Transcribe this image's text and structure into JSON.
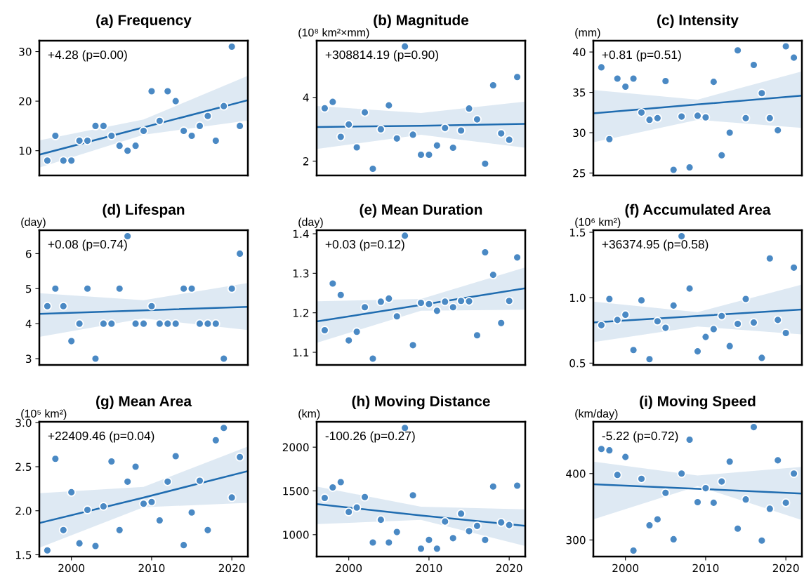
{
  "chart_data": [
    {
      "type": "scatter",
      "title": "(a) Frequency",
      "annotations": [
        "+4.28 (p=0.00)"
      ],
      "xlim": [
        1996,
        2022
      ],
      "xticks": [
        2000,
        2010,
        2020
      ],
      "ylim": [
        5,
        32.2
      ],
      "yticks": [
        10,
        20,
        30
      ],
      "tick_labels": "y",
      "grid": false,
      "series": [
        {
          "marker": "circle",
          "color": "#4a89c4",
          "x": [
            1997,
            1998,
            1999,
            2000,
            2001,
            2002,
            2003,
            2004,
            2005,
            2006,
            2007,
            2008,
            2009,
            2010,
            2011,
            2012,
            2013,
            2014,
            2015,
            2016,
            2017,
            2018,
            2019,
            2020,
            2021
          ],
          "values": [
            8,
            13,
            8,
            8,
            12,
            12,
            15,
            15,
            13,
            11,
            10,
            11,
            14,
            22,
            16,
            22,
            20,
            14,
            13,
            15,
            17,
            12,
            19,
            31,
            15
          ]
        },
        {
          "type": "line",
          "color": "#1f6cb0",
          "x": [
            1996,
            2009,
            2022
          ],
          "values": [
            9.2,
            14.7,
            20.2
          ],
          "lower": [
            6.6,
            13.2,
            16.1
          ],
          "upper": [
            12.1,
            16.3,
            25.1
          ]
        }
      ]
    },
    {
      "type": "scatter",
      "title": "(b) Magnitude",
      "ylabel": "(10⁸ km²×mm)",
      "annotations": [
        "+308814.19 (p=0.90)"
      ],
      "xlim": [
        1996,
        2022
      ],
      "xticks": [
        2000,
        2010,
        2020
      ],
      "ylim": [
        1.55,
        5.78
      ],
      "yticks": [
        2,
        4
      ],
      "tick_labels": "y",
      "grid": false,
      "series": [
        {
          "marker": "circle",
          "color": "#4a89c4",
          "x": [
            1997,
            1998,
            1999,
            2000,
            2001,
            2002,
            2003,
            2004,
            2005,
            2006,
            2007,
            2008,
            2009,
            2010,
            2011,
            2012,
            2013,
            2014,
            2015,
            2016,
            2017,
            2018,
            2019,
            2020,
            2021
          ],
          "values": [
            3.66,
            3.86,
            2.76,
            3.15,
            2.43,
            3.53,
            1.76,
            3.0,
            3.75,
            2.71,
            5.6,
            2.83,
            2.2,
            2.2,
            2.49,
            3.04,
            2.42,
            2.96,
            3.65,
            3.31,
            1.92,
            4.38,
            2.87,
            2.67,
            4.64
          ]
        },
        {
          "type": "line",
          "color": "#1f6cb0",
          "x": [
            1996,
            2009,
            2022
          ],
          "values": [
            3.07,
            3.11,
            3.17
          ],
          "lower": [
            2.38,
            2.83,
            2.42
          ],
          "upper": [
            3.73,
            3.51,
            3.87
          ]
        }
      ]
    },
    {
      "type": "scatter",
      "title": "(c) Intensity",
      "ylabel": "(mm)",
      "annotations": [
        "+0.81 (p=0.51)"
      ],
      "xlim": [
        1996,
        2022
      ],
      "xticks": [
        2000,
        2010,
        2020
      ],
      "ylim": [
        24.7,
        41.4
      ],
      "yticks": [
        25,
        30,
        35,
        40
      ],
      "tick_labels": "y",
      "grid": false,
      "series": [
        {
          "marker": "circle",
          "color": "#4a89c4",
          "x": [
            1997,
            1998,
            1999,
            2000,
            2001,
            2002,
            2003,
            2004,
            2005,
            2006,
            2007,
            2008,
            2009,
            2010,
            2011,
            2012,
            2013,
            2014,
            2015,
            2016,
            2017,
            2018,
            2019,
            2020,
            2021
          ],
          "values": [
            38.1,
            29.2,
            36.7,
            35.7,
            36.7,
            32.5,
            31.6,
            31.8,
            36.4,
            25.4,
            32.0,
            25.7,
            32.1,
            31.9,
            36.3,
            27.2,
            30.0,
            40.2,
            31.8,
            38.4,
            34.9,
            31.8,
            30.3,
            40.7,
            39.3
          ]
        },
        {
          "type": "line",
          "color": "#1f6cb0",
          "x": [
            1996,
            2009,
            2022
          ],
          "values": [
            32.4,
            33.5,
            34.6
          ],
          "lower": [
            28.8,
            31.6,
            30.6
          ],
          "upper": [
            35.3,
            34.1,
            37.6
          ]
        }
      ]
    },
    {
      "type": "scatter",
      "title": "(d) Lifespan",
      "ylabel": "(day)",
      "annotations": [
        "+0.08 (p=0.74)"
      ],
      "xlim": [
        1996,
        2022
      ],
      "xticks": [
        2000,
        2010,
        2020
      ],
      "ylim": [
        2.82,
        6.67
      ],
      "yticks": [
        3,
        4,
        5,
        6
      ],
      "tick_labels": "y",
      "grid": false,
      "series": [
        {
          "marker": "circle",
          "color": "#4a89c4",
          "x": [
            1997,
            1998,
            1999,
            2000,
            2001,
            2002,
            2003,
            2004,
            2005,
            2006,
            2007,
            2008,
            2009,
            2010,
            2011,
            2012,
            2013,
            2014,
            2015,
            2016,
            2017,
            2018,
            2019,
            2020,
            2021
          ],
          "values": [
            4.5,
            5,
            4.5,
            3.5,
            4,
            5,
            3,
            4,
            4,
            5,
            6.5,
            4,
            4,
            4.5,
            4,
            4,
            4,
            5,
            5,
            4,
            4,
            4,
            3,
            5,
            6
          ]
        },
        {
          "type": "line",
          "color": "#1f6cb0",
          "x": [
            1996,
            2009,
            2022
          ],
          "values": [
            4.28,
            4.38,
            4.48
          ],
          "lower": [
            3.62,
            4.15,
            3.82
          ],
          "upper": [
            4.87,
            4.67,
            5.16
          ]
        }
      ]
    },
    {
      "type": "scatter",
      "title": "(e) Mean Duration",
      "ylabel": "(day)",
      "annotations": [
        "+0.03 (p=0.12)"
      ],
      "xlim": [
        1996,
        2022
      ],
      "xticks": [
        2000,
        2010,
        2020
      ],
      "ylim": [
        1.068,
        1.409
      ],
      "yticks": [
        1.1,
        1.2,
        1.3,
        1.4
      ],
      "tick_labels": "y",
      "grid": false,
      "series": [
        {
          "marker": "circle",
          "color": "#4a89c4",
          "x": [
            1997,
            1998,
            1999,
            2000,
            2001,
            2002,
            2003,
            2004,
            2005,
            2006,
            2007,
            2008,
            2009,
            2010,
            2011,
            2012,
            2013,
            2014,
            2015,
            2016,
            2017,
            2018,
            2019,
            2020,
            2021
          ],
          "values": [
            1.156,
            1.274,
            1.245,
            1.13,
            1.152,
            1.214,
            1.084,
            1.228,
            1.236,
            1.191,
            1.395,
            1.118,
            1.225,
            1.222,
            1.205,
            1.228,
            1.214,
            1.23,
            1.229,
            1.143,
            1.353,
            1.296,
            1.174,
            1.23,
            1.34
          ]
        },
        {
          "type": "line",
          "color": "#1f6cb0",
          "x": [
            1996,
            2009,
            2022
          ],
          "values": [
            1.178,
            1.22,
            1.262
          ],
          "lower": [
            1.124,
            1.205,
            1.208
          ],
          "upper": [
            1.229,
            1.235,
            1.315
          ]
        }
      ]
    },
    {
      "type": "scatter",
      "title": "(f) Accumulated Area",
      "ylabel": "(10⁶ km²)",
      "annotations": [
        "+36374.95 (p=0.58)"
      ],
      "xlim": [
        1996,
        2022
      ],
      "xticks": [
        2000,
        2010,
        2020
      ],
      "ylim": [
        0.486,
        1.516
      ],
      "yticks": [
        0.5,
        {
          "value": 1.0,
          "label": "1.0"
        },
        1.5
      ],
      "tick_labels": "y",
      "grid": false,
      "series": [
        {
          "marker": "circle",
          "color": "#4a89c4",
          "x": [
            1997,
            1998,
            1999,
            2000,
            2001,
            2002,
            2003,
            2004,
            2005,
            2006,
            2007,
            2008,
            2009,
            2010,
            2011,
            2012,
            2013,
            2014,
            2015,
            2016,
            2017,
            2018,
            2019,
            2020,
            2021
          ],
          "values": [
            0.79,
            0.99,
            0.83,
            0.87,
            0.6,
            0.98,
            0.53,
            0.82,
            0.77,
            0.94,
            1.47,
            1.07,
            0.59,
            0.7,
            0.76,
            0.86,
            0.63,
            0.8,
            0.99,
            0.81,
            0.54,
            1.3,
            0.83,
            0.73,
            1.23
          ]
        },
        {
          "type": "line",
          "color": "#1f6cb0",
          "x": [
            1996,
            2009,
            2022
          ],
          "values": [
            0.81,
            0.86,
            0.91
          ],
          "lower": [
            0.66,
            0.78,
            0.72
          ],
          "upper": [
            0.97,
            0.89,
            1.1
          ]
        }
      ]
    },
    {
      "type": "scatter",
      "title": "(g) Mean Area",
      "ylabel": "(10⁵ km²)",
      "annotations": [
        "+22409.46 (p=0.04)"
      ],
      "xlim": [
        1996,
        2022
      ],
      "xticks": [
        2000,
        2010,
        2020
      ],
      "ylim": [
        1.48,
        3.01
      ],
      "yticks": [
        1.5,
        {
          "value": 2.0,
          "label": "2.0"
        },
        2.5,
        {
          "value": 3.0,
          "label": "3.0"
        }
      ],
      "grid": false,
      "series": [
        {
          "marker": "circle",
          "color": "#4a89c4",
          "x": [
            1997,
            1998,
            1999,
            2000,
            2001,
            2002,
            2003,
            2004,
            2005,
            2006,
            2007,
            2008,
            2009,
            2010,
            2011,
            2012,
            2013,
            2014,
            2015,
            2016,
            2017,
            2018,
            2019,
            2020,
            2021
          ],
          "values": [
            1.55,
            2.59,
            1.78,
            2.21,
            1.63,
            2.01,
            1.6,
            2.05,
            2.56,
            1.78,
            2.33,
            2.5,
            2.08,
            2.1,
            1.89,
            2.33,
            2.62,
            1.61,
            1.98,
            2.34,
            1.78,
            2.8,
            2.94,
            2.15,
            2.61
          ]
        },
        {
          "type": "line",
          "color": "#1f6cb0",
          "x": [
            1996,
            2009,
            2022
          ],
          "values": [
            1.86,
            2.15,
            2.45
          ],
          "lower": [
            1.58,
            2.04,
            2.09
          ],
          "upper": [
            2.2,
            2.27,
            2.73
          ]
        }
      ]
    },
    {
      "type": "scatter",
      "title": "(h) Moving Distance",
      "ylabel": "(km)",
      "annotations": [
        "-100.26 (p=0.27)"
      ],
      "xlim": [
        1996,
        2022
      ],
      "xticks": [
        2000,
        2010,
        2020
      ],
      "ylim": [
        750,
        2290
      ],
      "yticks": [
        1000,
        1500,
        2000
      ],
      "grid": false,
      "series": [
        {
          "marker": "circle",
          "color": "#4a89c4",
          "x": [
            1997,
            1998,
            1999,
            2000,
            2001,
            2002,
            2003,
            2004,
            2005,
            2006,
            2007,
            2008,
            2009,
            2010,
            2011,
            2012,
            2013,
            2014,
            2015,
            2016,
            2017,
            2018,
            2019,
            2020,
            2021
          ],
          "values": [
            1420,
            1540,
            1600,
            1260,
            1310,
            1430,
            910,
            1170,
            910,
            1030,
            2220,
            1450,
            840,
            940,
            840,
            1150,
            960,
            1240,
            1040,
            1100,
            940,
            1550,
            1140,
            1110,
            1560
          ]
        },
        {
          "type": "line",
          "color": "#1f6cb0",
          "x": [
            1996,
            2009,
            2022
          ],
          "values": [
            1350,
            1220,
            1100
          ],
          "lower": [
            1120,
            1170,
            870
          ],
          "upper": [
            1550,
            1320,
            1290
          ]
        }
      ]
    },
    {
      "type": "scatter",
      "title": "(i) Moving Speed",
      "ylabel": "(km/day)",
      "annotations": [
        "-5.22 (p=0.72)"
      ],
      "xlim": [
        1996,
        2022
      ],
      "xticks": [
        2000,
        2010,
        2020
      ],
      "ylim": [
        275,
        478
      ],
      "yticks": [
        300,
        400
      ],
      "grid": false,
      "series": [
        {
          "marker": "circle",
          "color": "#4a89c4",
          "x": [
            1997,
            1998,
            1999,
            2000,
            2001,
            2002,
            2003,
            2004,
            2005,
            2006,
            2007,
            2008,
            2009,
            2010,
            2011,
            2012,
            2013,
            2014,
            2015,
            2016,
            2017,
            2018,
            2019,
            2020,
            2021
          ],
          "values": [
            437,
            435,
            398,
            425,
            284,
            392,
            322,
            331,
            371,
            301,
            400,
            451,
            357,
            378,
            356,
            388,
            418,
            317,
            361,
            470,
            299,
            347,
            420,
            356,
            400
          ]
        },
        {
          "type": "line",
          "color": "#1f6cb0",
          "x": [
            1996,
            2009,
            2022
          ],
          "values": [
            384,
            377,
            370
          ],
          "lower": [
            331,
            381,
            330
          ],
          "upper": [
            418,
            397,
            410
          ]
        }
      ]
    }
  ]
}
